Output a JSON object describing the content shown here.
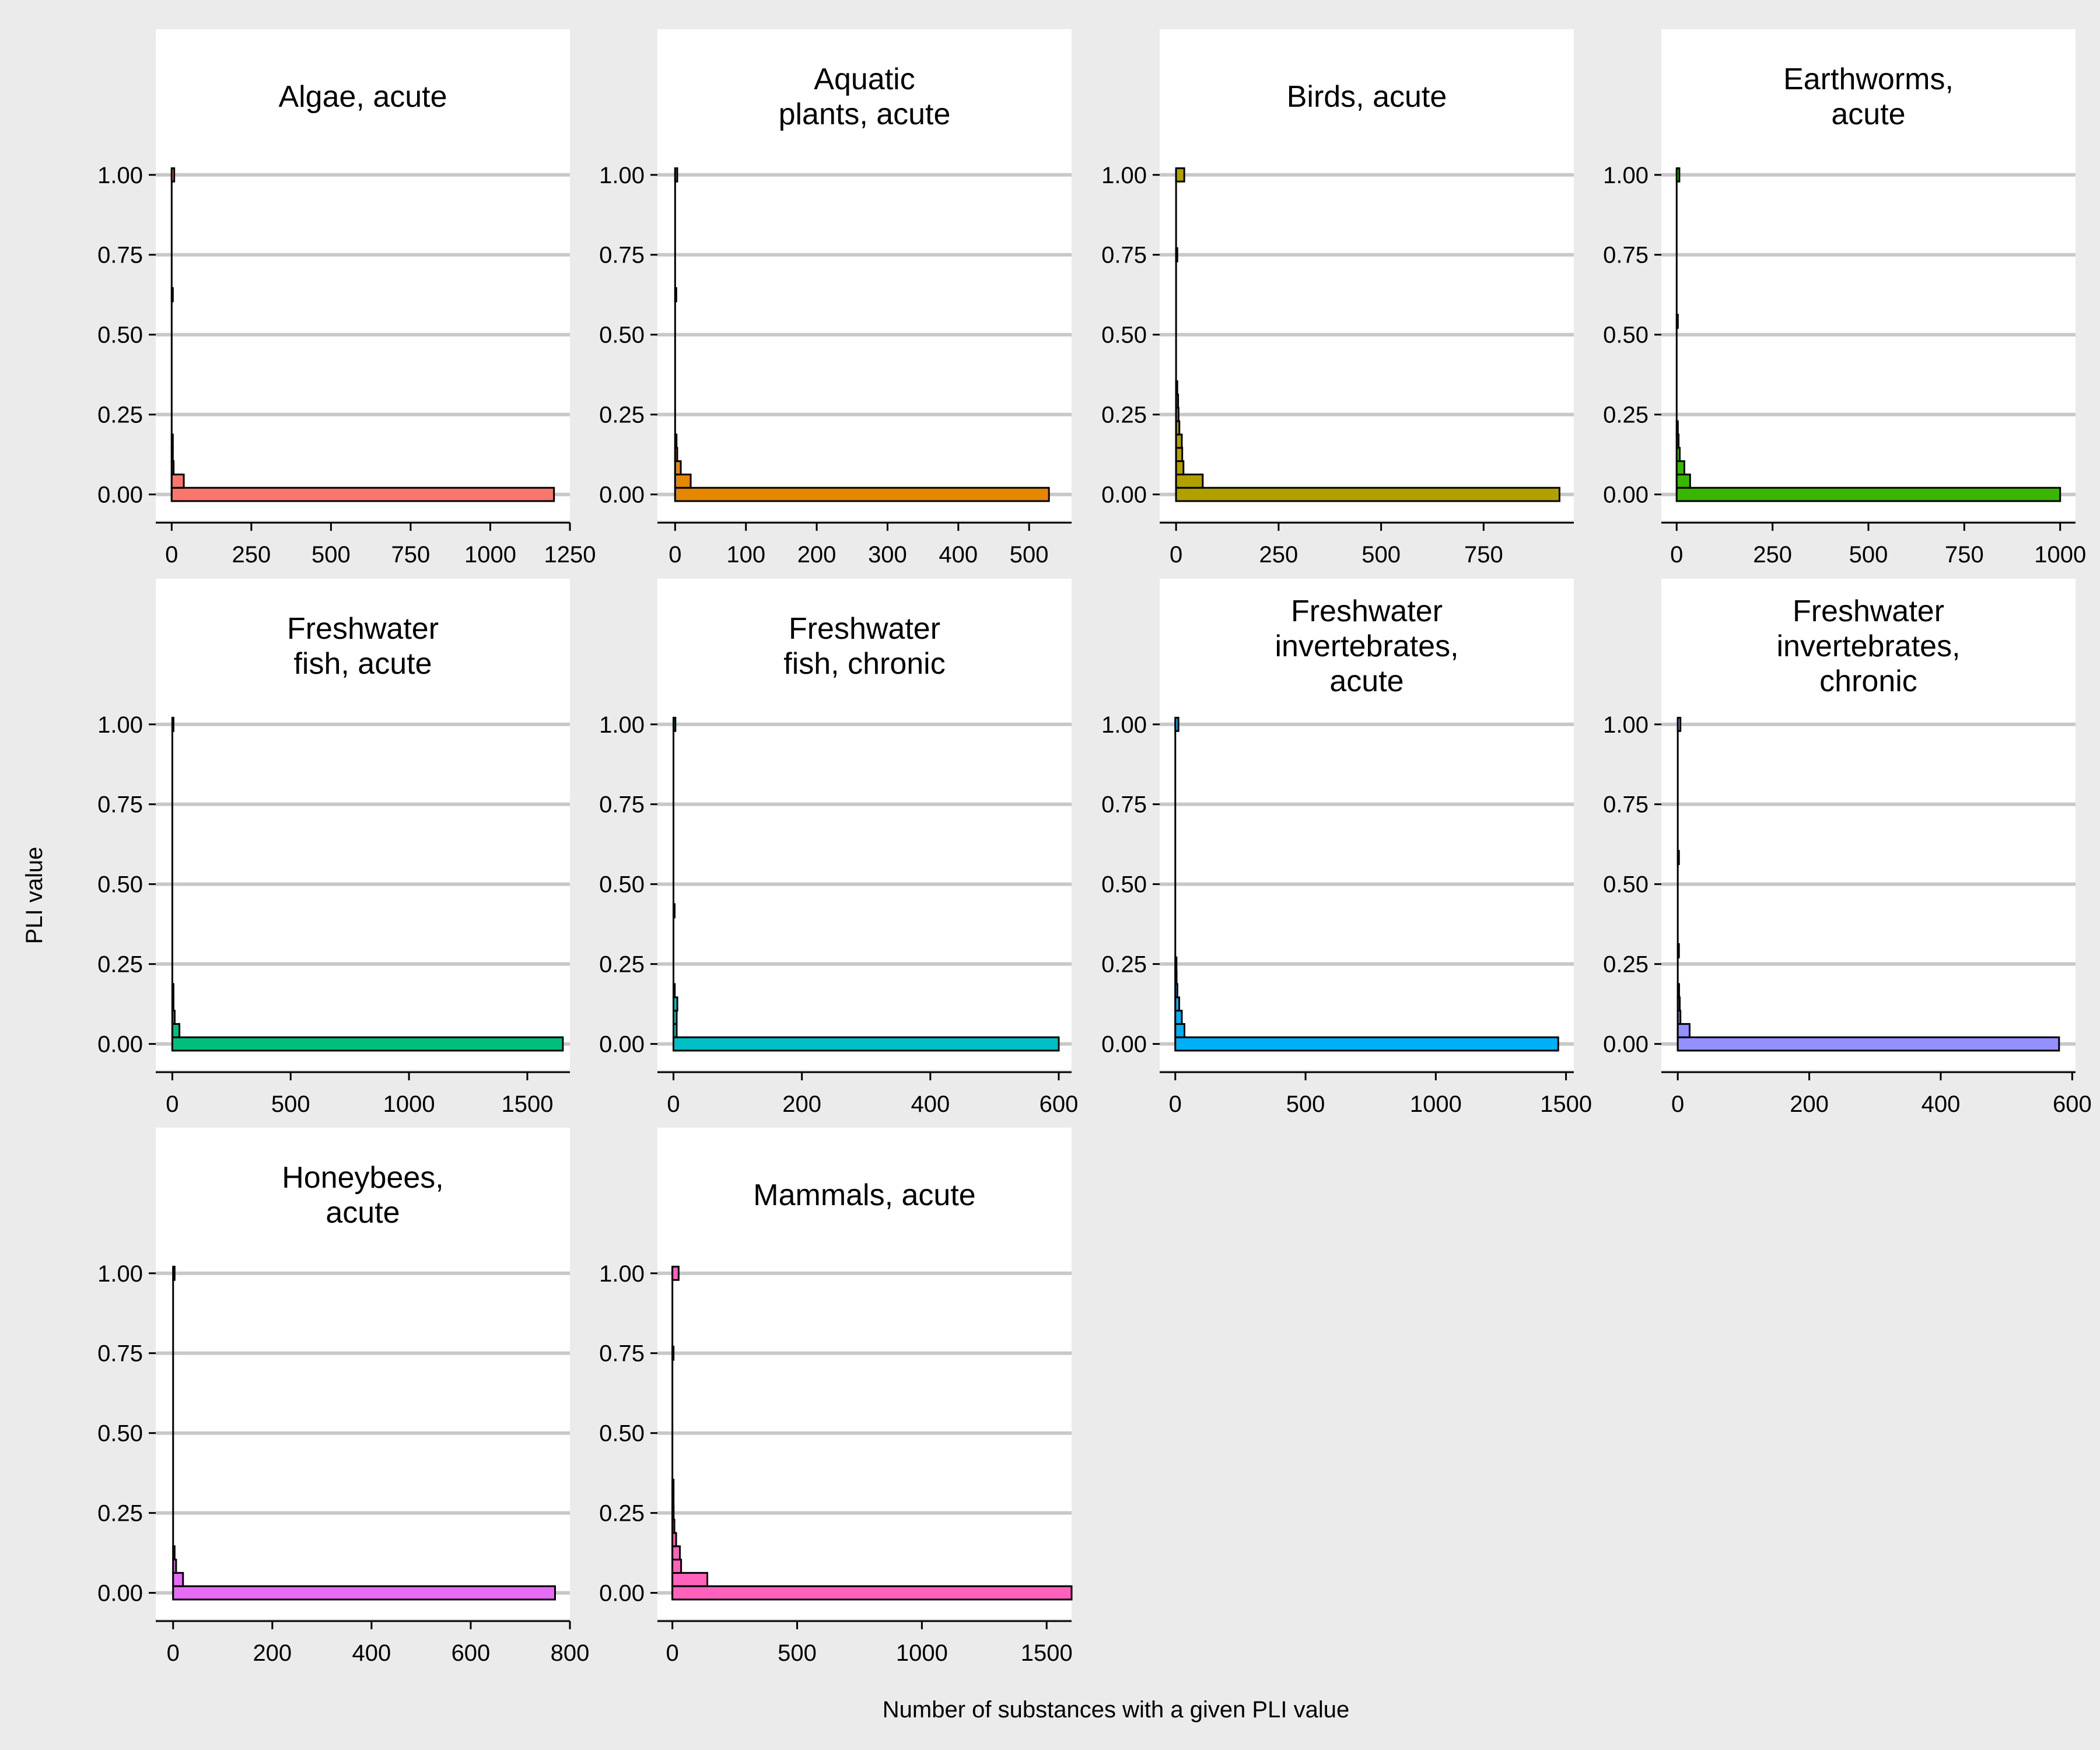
{
  "figure": {
    "ylabel": "PLI value",
    "xlabel": "Number of substances with a given PLI value",
    "background": "#ebebeb",
    "panel_background": "#ffffff"
  },
  "chart_data": [
    {
      "type": "bar",
      "orientation": "horizontal",
      "title": "Algae, acute",
      "color": "#F8766D",
      "xlim": [
        -50,
        1250
      ],
      "xticks": [
        0,
        250,
        500,
        750,
        1000,
        1250
      ],
      "ylim": [
        -0.05,
        1.1
      ],
      "yticks": [
        0,
        0.25,
        0.5,
        0.75,
        1
      ],
      "bins": [
        {
          "y": 0,
          "count": 1200
        },
        {
          "y": 0.0417,
          "count": 38
        },
        {
          "y": 0.0833,
          "count": 6
        },
        {
          "y": 0.125,
          "count": 3
        },
        {
          "y": 0.1667,
          "count": 2
        },
        {
          "y": 0.625,
          "count": 2
        },
        {
          "y": 1,
          "count": 8
        }
      ]
    },
    {
      "type": "bar",
      "orientation": "horizontal",
      "title": "Aquatic\nplants, acute",
      "color": "#E58700",
      "xlim": [
        -25,
        560
      ],
      "xticks": [
        0,
        100,
        200,
        300,
        400,
        500
      ],
      "ylim": [
        -0.05,
        1.1
      ],
      "yticks": [
        0,
        0.25,
        0.5,
        0.75,
        1
      ],
      "bins": [
        {
          "y": 0,
          "count": 528
        },
        {
          "y": 0.0417,
          "count": 22
        },
        {
          "y": 0.0833,
          "count": 8
        },
        {
          "y": 0.125,
          "count": 3
        },
        {
          "y": 0.1667,
          "count": 2
        },
        {
          "y": 0.625,
          "count": 1
        },
        {
          "y": 1,
          "count": 3
        }
      ]
    },
    {
      "type": "bar",
      "orientation": "horizontal",
      "title": "Birds, acute",
      "color": "#B0A100",
      "xlim": [
        -40,
        970
      ],
      "xticks": [
        0,
        250,
        500,
        750
      ],
      "ylim": [
        -0.05,
        1.1
      ],
      "yticks": [
        0,
        0.25,
        0.5,
        0.75,
        1
      ],
      "bins": [
        {
          "y": 0,
          "count": 935
        },
        {
          "y": 0.0417,
          "count": 65
        },
        {
          "y": 0.0833,
          "count": 18
        },
        {
          "y": 0.125,
          "count": 15
        },
        {
          "y": 0.1667,
          "count": 14
        },
        {
          "y": 0.2083,
          "count": 8
        },
        {
          "y": 0.25,
          "count": 6
        },
        {
          "y": 0.2917,
          "count": 5
        },
        {
          "y": 0.3333,
          "count": 3
        },
        {
          "y": 0.75,
          "count": 3
        },
        {
          "y": 1,
          "count": 20
        }
      ]
    },
    {
      "type": "bar",
      "orientation": "horizontal",
      "title": "Earthworms,\nacute",
      "color": "#39B600",
      "xlim": [
        -40,
        1040
      ],
      "xticks": [
        0,
        250,
        500,
        750,
        1000
      ],
      "ylim": [
        -0.05,
        1.1
      ],
      "yticks": [
        0,
        0.25,
        0.5,
        0.75,
        1
      ],
      "bins": [
        {
          "y": 0,
          "count": 1000
        },
        {
          "y": 0.0417,
          "count": 35
        },
        {
          "y": 0.0833,
          "count": 20
        },
        {
          "y": 0.125,
          "count": 8
        },
        {
          "y": 0.1667,
          "count": 5
        },
        {
          "y": 0.2083,
          "count": 3
        },
        {
          "y": 0.5417,
          "count": 2
        },
        {
          "y": 1,
          "count": 7
        }
      ]
    },
    {
      "type": "bar",
      "orientation": "horizontal",
      "title": "Freshwater\nfish, acute",
      "color": "#00BF7D",
      "xlim": [
        -70,
        1680
      ],
      "xticks": [
        0,
        500,
        1000,
        1500
      ],
      "ylim": [
        -0.05,
        1.1
      ],
      "yticks": [
        0,
        0.25,
        0.5,
        0.75,
        1
      ],
      "bins": [
        {
          "y": 0,
          "count": 1650
        },
        {
          "y": 0.0417,
          "count": 30
        },
        {
          "y": 0.0833,
          "count": 10
        },
        {
          "y": 0.125,
          "count": 5
        },
        {
          "y": 0.1667,
          "count": 3
        },
        {
          "y": 1,
          "count": 4
        }
      ]
    },
    {
      "type": "bar",
      "orientation": "horizontal",
      "title": "Freshwater\nfish, chronic",
      "color": "#00BFC4",
      "xlim": [
        -25,
        620
      ],
      "xticks": [
        0,
        200,
        400,
        600
      ],
      "ylim": [
        -0.05,
        1.1
      ],
      "yticks": [
        0,
        0.25,
        0.5,
        0.75,
        1
      ],
      "bins": [
        {
          "y": 0,
          "count": 600
        },
        {
          "y": 0.0417,
          "count": 5
        },
        {
          "y": 0.0833,
          "count": 5
        },
        {
          "y": 0.125,
          "count": 6
        },
        {
          "y": 0.1667,
          "count": 2
        },
        {
          "y": 0.4167,
          "count": 1
        },
        {
          "y": 1,
          "count": 3
        }
      ]
    },
    {
      "type": "bar",
      "orientation": "horizontal",
      "title": "Freshwater\ninvertebrates,\nacute",
      "color": "#00B0F6",
      "xlim": [
        -60,
        1530
      ],
      "xticks": [
        0,
        500,
        1000,
        1500
      ],
      "ylim": [
        -0.05,
        1.1
      ],
      "yticks": [
        0,
        0.25,
        0.5,
        0.75,
        1
      ],
      "bins": [
        {
          "y": 0,
          "count": 1470
        },
        {
          "y": 0.0417,
          "count": 35
        },
        {
          "y": 0.0833,
          "count": 25
        },
        {
          "y": 0.125,
          "count": 15
        },
        {
          "y": 0.1667,
          "count": 8
        },
        {
          "y": 0.2083,
          "count": 5
        },
        {
          "y": 0.25,
          "count": 3
        },
        {
          "y": 1,
          "count": 12
        }
      ]
    },
    {
      "type": "bar",
      "orientation": "horizontal",
      "title": "Freshwater\ninvertebrates,\nchronic",
      "color": "#9590FF",
      "xlim": [
        -25,
        605
      ],
      "xticks": [
        0,
        200,
        400,
        600
      ],
      "ylim": [
        -0.05,
        1.1
      ],
      "yticks": [
        0,
        0.25,
        0.5,
        0.75,
        1
      ],
      "bins": [
        {
          "y": 0,
          "count": 580
        },
        {
          "y": 0.0417,
          "count": 18
        },
        {
          "y": 0.0833,
          "count": 4
        },
        {
          "y": 0.125,
          "count": 3
        },
        {
          "y": 0.1667,
          "count": 2
        },
        {
          "y": 0.2917,
          "count": 1
        },
        {
          "y": 0.5833,
          "count": 1
        },
        {
          "y": 1,
          "count": 4
        }
      ]
    },
    {
      "type": "bar",
      "orientation": "horizontal",
      "title": "Honeybees,\nacute",
      "color": "#E76BF3",
      "xlim": [
        -35,
        800
      ],
      "xticks": [
        0,
        200,
        400,
        600,
        800
      ],
      "ylim": [
        -0.05,
        1.1
      ],
      "yticks": [
        0,
        0.25,
        0.5,
        0.75,
        1
      ],
      "bins": [
        {
          "y": 0,
          "count": 770
        },
        {
          "y": 0.0417,
          "count": 20
        },
        {
          "y": 0.0833,
          "count": 6
        },
        {
          "y": 0.125,
          "count": 3
        },
        {
          "y": 1,
          "count": 3
        }
      ]
    },
    {
      "type": "bar",
      "orientation": "horizontal",
      "title": "Mammals, acute",
      "color": "#FF62BC",
      "xlim": [
        -60,
        1600
      ],
      "xticks": [
        0,
        500,
        1000,
        1500
      ],
      "ylim": [
        -0.05,
        1.1
      ],
      "yticks": [
        0,
        0.25,
        0.5,
        0.75,
        1
      ],
      "bins": [
        {
          "y": 0,
          "count": 1600
        },
        {
          "y": 0.0417,
          "count": 140
        },
        {
          "y": 0.0833,
          "count": 35
        },
        {
          "y": 0.125,
          "count": 30
        },
        {
          "y": 0.1667,
          "count": 15
        },
        {
          "y": 0.2083,
          "count": 8
        },
        {
          "y": 0.25,
          "count": 5
        },
        {
          "y": 0.2917,
          "count": 4
        },
        {
          "y": 0.3333,
          "count": 3
        },
        {
          "y": 0.75,
          "count": 3
        },
        {
          "y": 1,
          "count": 25
        }
      ]
    }
  ]
}
